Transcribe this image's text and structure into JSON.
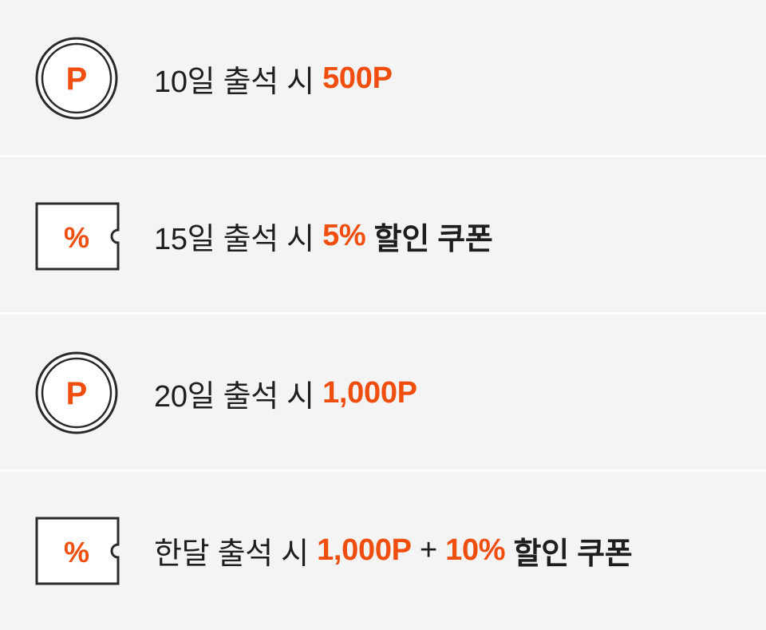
{
  "colors": {
    "background": "#f4f4f4",
    "divider": "#ffffff",
    "text": "#1e1e1e",
    "accent": "#f04e0f"
  },
  "rewards": [
    {
      "icon": "point-coin-icon",
      "icon_glyph": "P",
      "prefix": "10일 출석 시 ",
      "highlight": "500P"
    },
    {
      "icon": "discount-coupon-icon",
      "icon_glyph": "%",
      "prefix": "15일 출석 시 ",
      "highlight": "5%",
      "suffix": " 할인 쿠폰"
    },
    {
      "icon": "point-coin-icon",
      "icon_glyph": "P",
      "prefix": "20일 출석 시 ",
      "highlight": "1,000P"
    },
    {
      "icon": "discount-coupon-icon",
      "icon_glyph": "%",
      "prefix": "한달 출석 시 ",
      "highlight": "1,000P",
      "joiner": " + ",
      "highlight2": "10%",
      "suffix": " 할인 쿠폰"
    }
  ]
}
